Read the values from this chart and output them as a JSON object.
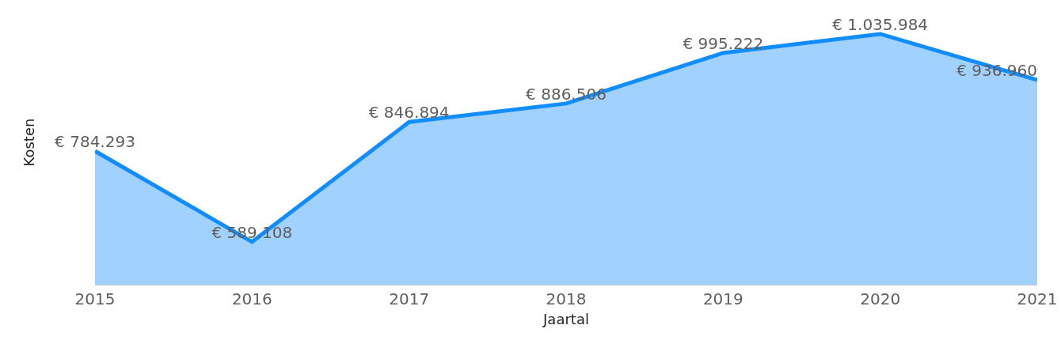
{
  "chart_data": {
    "type": "area",
    "xlabel": "Jaartal",
    "ylabel": "Kosten",
    "categories": [
      "2015",
      "2016",
      "2017",
      "2018",
      "2019",
      "2020",
      "2021"
    ],
    "series": [
      {
        "color": "#118dff",
        "values": [
          784293,
          589108,
          846894,
          886506,
          995222,
          1035984,
          936960
        ],
        "value_labels": [
          "€ 784.293",
          "€ 589.108",
          "€ 846.894",
          "€ 886.506",
          "€ 995.222",
          "€ 1.035.984",
          "€ 936.960"
        ]
      }
    ],
    "ylim": [
      497000,
      1109000
    ],
    "tick_labels": "x",
    "grid": false
  }
}
